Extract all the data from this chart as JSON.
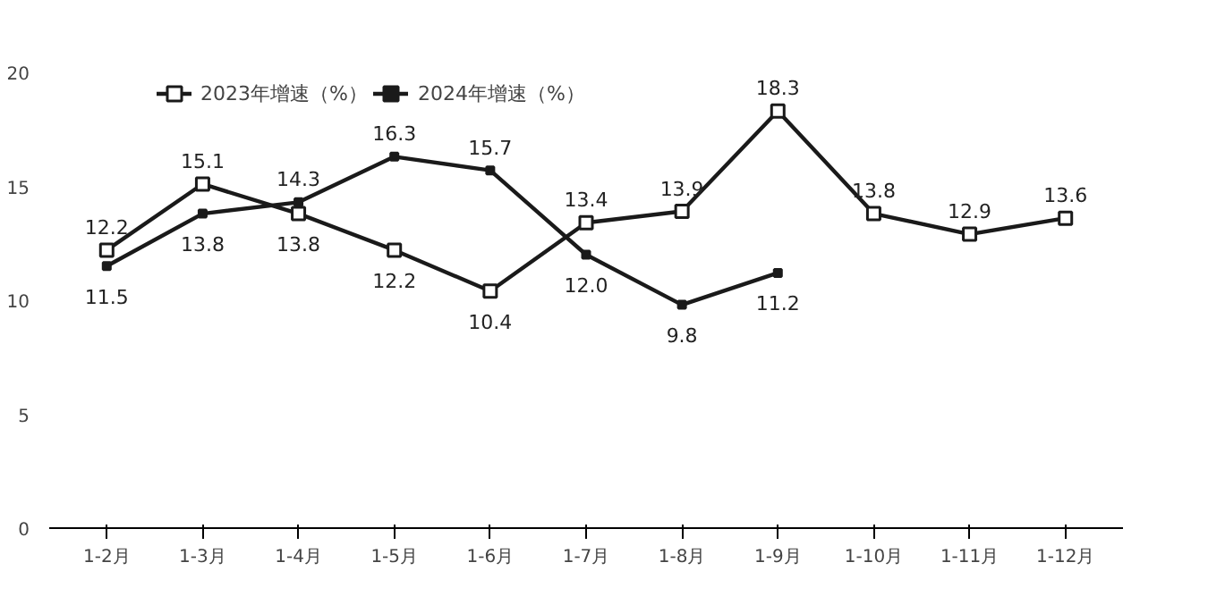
{
  "chart_data": {
    "type": "line",
    "categories": [
      "1-2月",
      "1-3月",
      "1-4月",
      "1-5月",
      "1-6月",
      "1-7月",
      "1-8月",
      "1-9月",
      "1-10月",
      "1-11月",
      "1-12月"
    ],
    "series": [
      {
        "name": "2023年增速（%）",
        "color": "#1a1a1a",
        "marker": "square",
        "values": [
          12.2,
          15.1,
          13.8,
          12.2,
          10.4,
          13.4,
          13.9,
          18.3,
          13.8,
          12.9,
          13.6
        ],
        "value_labels": [
          "12.2",
          "15.1",
          "13.8",
          "12.2",
          "10.4",
          "13.4",
          "13.9",
          "18.3",
          "13.8",
          "12.9",
          "13.6"
        ]
      },
      {
        "name": "2024年增速（%）",
        "color": "#1a1a1a",
        "marker": "square",
        "values": [
          11.5,
          13.8,
          14.3,
          16.3,
          15.7,
          12.0,
          9.8,
          11.2,
          null,
          null,
          null
        ],
        "value_labels": [
          "11.5",
          "13.8",
          "14.3",
          "16.3",
          "15.7",
          "12.0",
          "9.8",
          "11.2",
          null,
          null,
          null
        ]
      }
    ],
    "ylim": [
      0,
      20
    ],
    "yticks": [
      0,
      5,
      10,
      15,
      20
    ],
    "legend": "top",
    "line_style": "solid"
  }
}
